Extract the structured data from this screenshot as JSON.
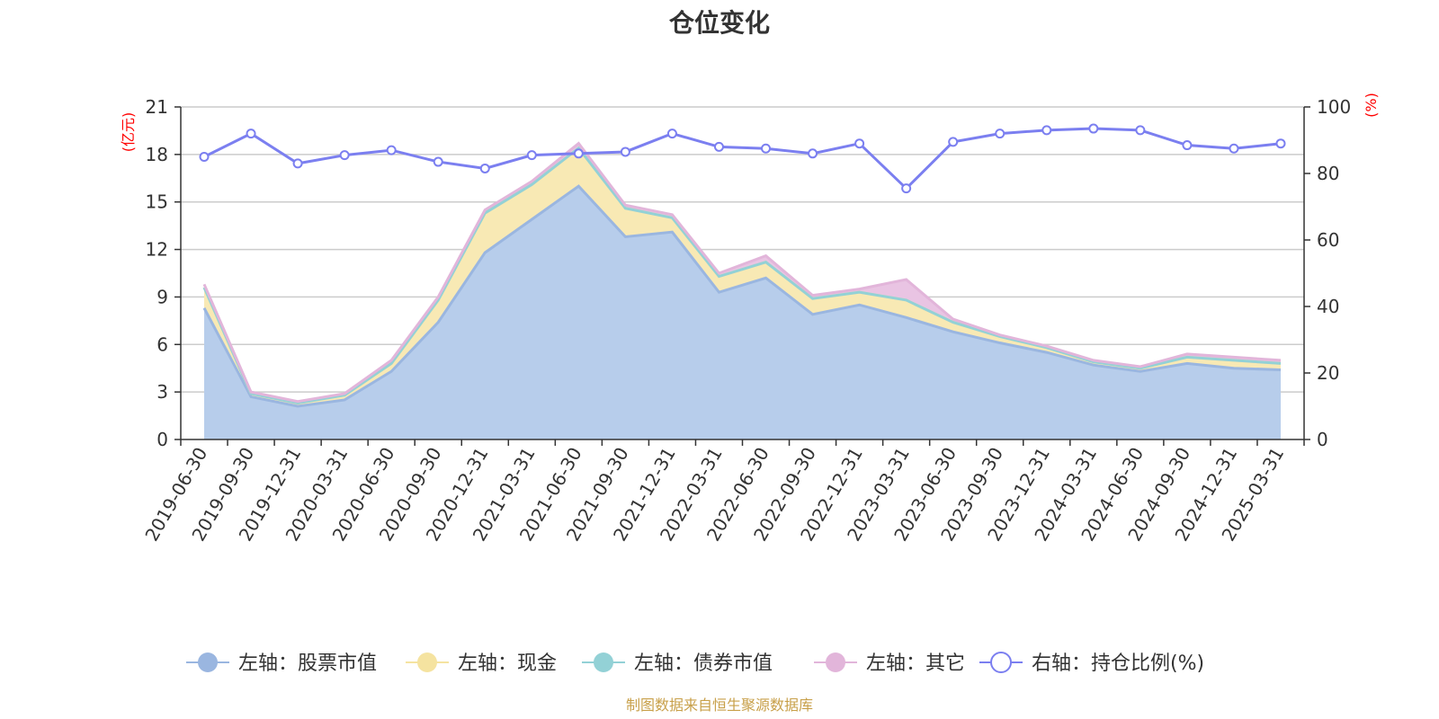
{
  "chart_data": {
    "type": "area",
    "title": "仓位变化",
    "left_unit": "(亿元)",
    "right_unit": "(%)",
    "categories": [
      "2019-06-30",
      "2019-09-30",
      "2019-12-31",
      "2020-03-31",
      "2020-06-30",
      "2020-09-30",
      "2020-12-31",
      "2021-03-31",
      "2021-06-30",
      "2021-09-30",
      "2021-12-31",
      "2022-03-31",
      "2022-06-30",
      "2022-09-30",
      "2022-12-31",
      "2023-03-31",
      "2023-06-30",
      "2023-09-30",
      "2023-12-31",
      "2024-03-31",
      "2024-06-30",
      "2024-09-30",
      "2024-12-31",
      "2025-03-31"
    ],
    "left_axis": {
      "min": 0,
      "max": 21,
      "ticks": [
        0,
        3,
        6,
        9,
        12,
        15,
        18,
        21
      ]
    },
    "right_axis": {
      "min": 0,
      "max": 100,
      "ticks": [
        0,
        20,
        40,
        60,
        80,
        100
      ]
    },
    "grid": true,
    "legend_position": "bottom",
    "series": [
      {
        "name": "左轴：股票市值",
        "axis": "left",
        "stack": true,
        "color": "#9ab6e0",
        "fill": "#b7cdeb",
        "values": [
          8.3,
          2.7,
          2.1,
          2.5,
          4.3,
          7.4,
          11.8,
          13.9,
          16.0,
          12.8,
          13.1,
          9.3,
          10.2,
          7.9,
          8.5,
          7.7,
          6.8,
          6.1,
          5.5,
          4.7,
          4.3,
          4.8,
          4.5,
          4.4
        ]
      },
      {
        "name": "左轴：现金",
        "axis": "left",
        "stack": true,
        "color": "#f5e3a0",
        "fill": "#f8e9b4",
        "values": [
          1.3,
          0.2,
          0.2,
          0.3,
          0.5,
          1.4,
          2.5,
          2.2,
          2.4,
          1.8,
          0.9,
          1.0,
          1.0,
          1.0,
          0.8,
          1.1,
          0.6,
          0.4,
          0.3,
          0.2,
          0.2,
          0.4,
          0.5,
          0.4
        ]
      },
      {
        "name": "左轴：债券市值",
        "axis": "left",
        "stack": true,
        "color": "#93d1d6",
        "fill": "#c4e6e8",
        "values": [
          0,
          0,
          0,
          0,
          0,
          0,
          0,
          0,
          0,
          0,
          0,
          0,
          0,
          0,
          0,
          0,
          0,
          0,
          0,
          0,
          0,
          0,
          0,
          0
        ]
      },
      {
        "name": "左轴：其它",
        "axis": "left",
        "stack": true,
        "color": "#e2b5da",
        "fill": "#e9c4e3",
        "values": [
          0.2,
          0.1,
          0.1,
          0.1,
          0.2,
          0.2,
          0.2,
          0.2,
          0.3,
          0.2,
          0.2,
          0.2,
          0.4,
          0.2,
          0.2,
          1.3,
          0.2,
          0.1,
          0.1,
          0.1,
          0.1,
          0.2,
          0.2,
          0.2
        ]
      },
      {
        "name": "右轴：持仓比例(%)",
        "axis": "right",
        "stack": false,
        "color": "#7b7ff0",
        "values": [
          85,
          92,
          83,
          85.5,
          87,
          83.5,
          81.5,
          85.5,
          86,
          86.5,
          92,
          88,
          87.5,
          86,
          89,
          75.5,
          89.5,
          92,
          93,
          93.5,
          93,
          88.5,
          87.5,
          89
        ]
      }
    ]
  },
  "source_note": "制图数据来自恒生聚源数据库",
  "colors": {
    "axis_label": "#ff0000",
    "source": "#c8a04a",
    "grid": "#cccccc"
  }
}
